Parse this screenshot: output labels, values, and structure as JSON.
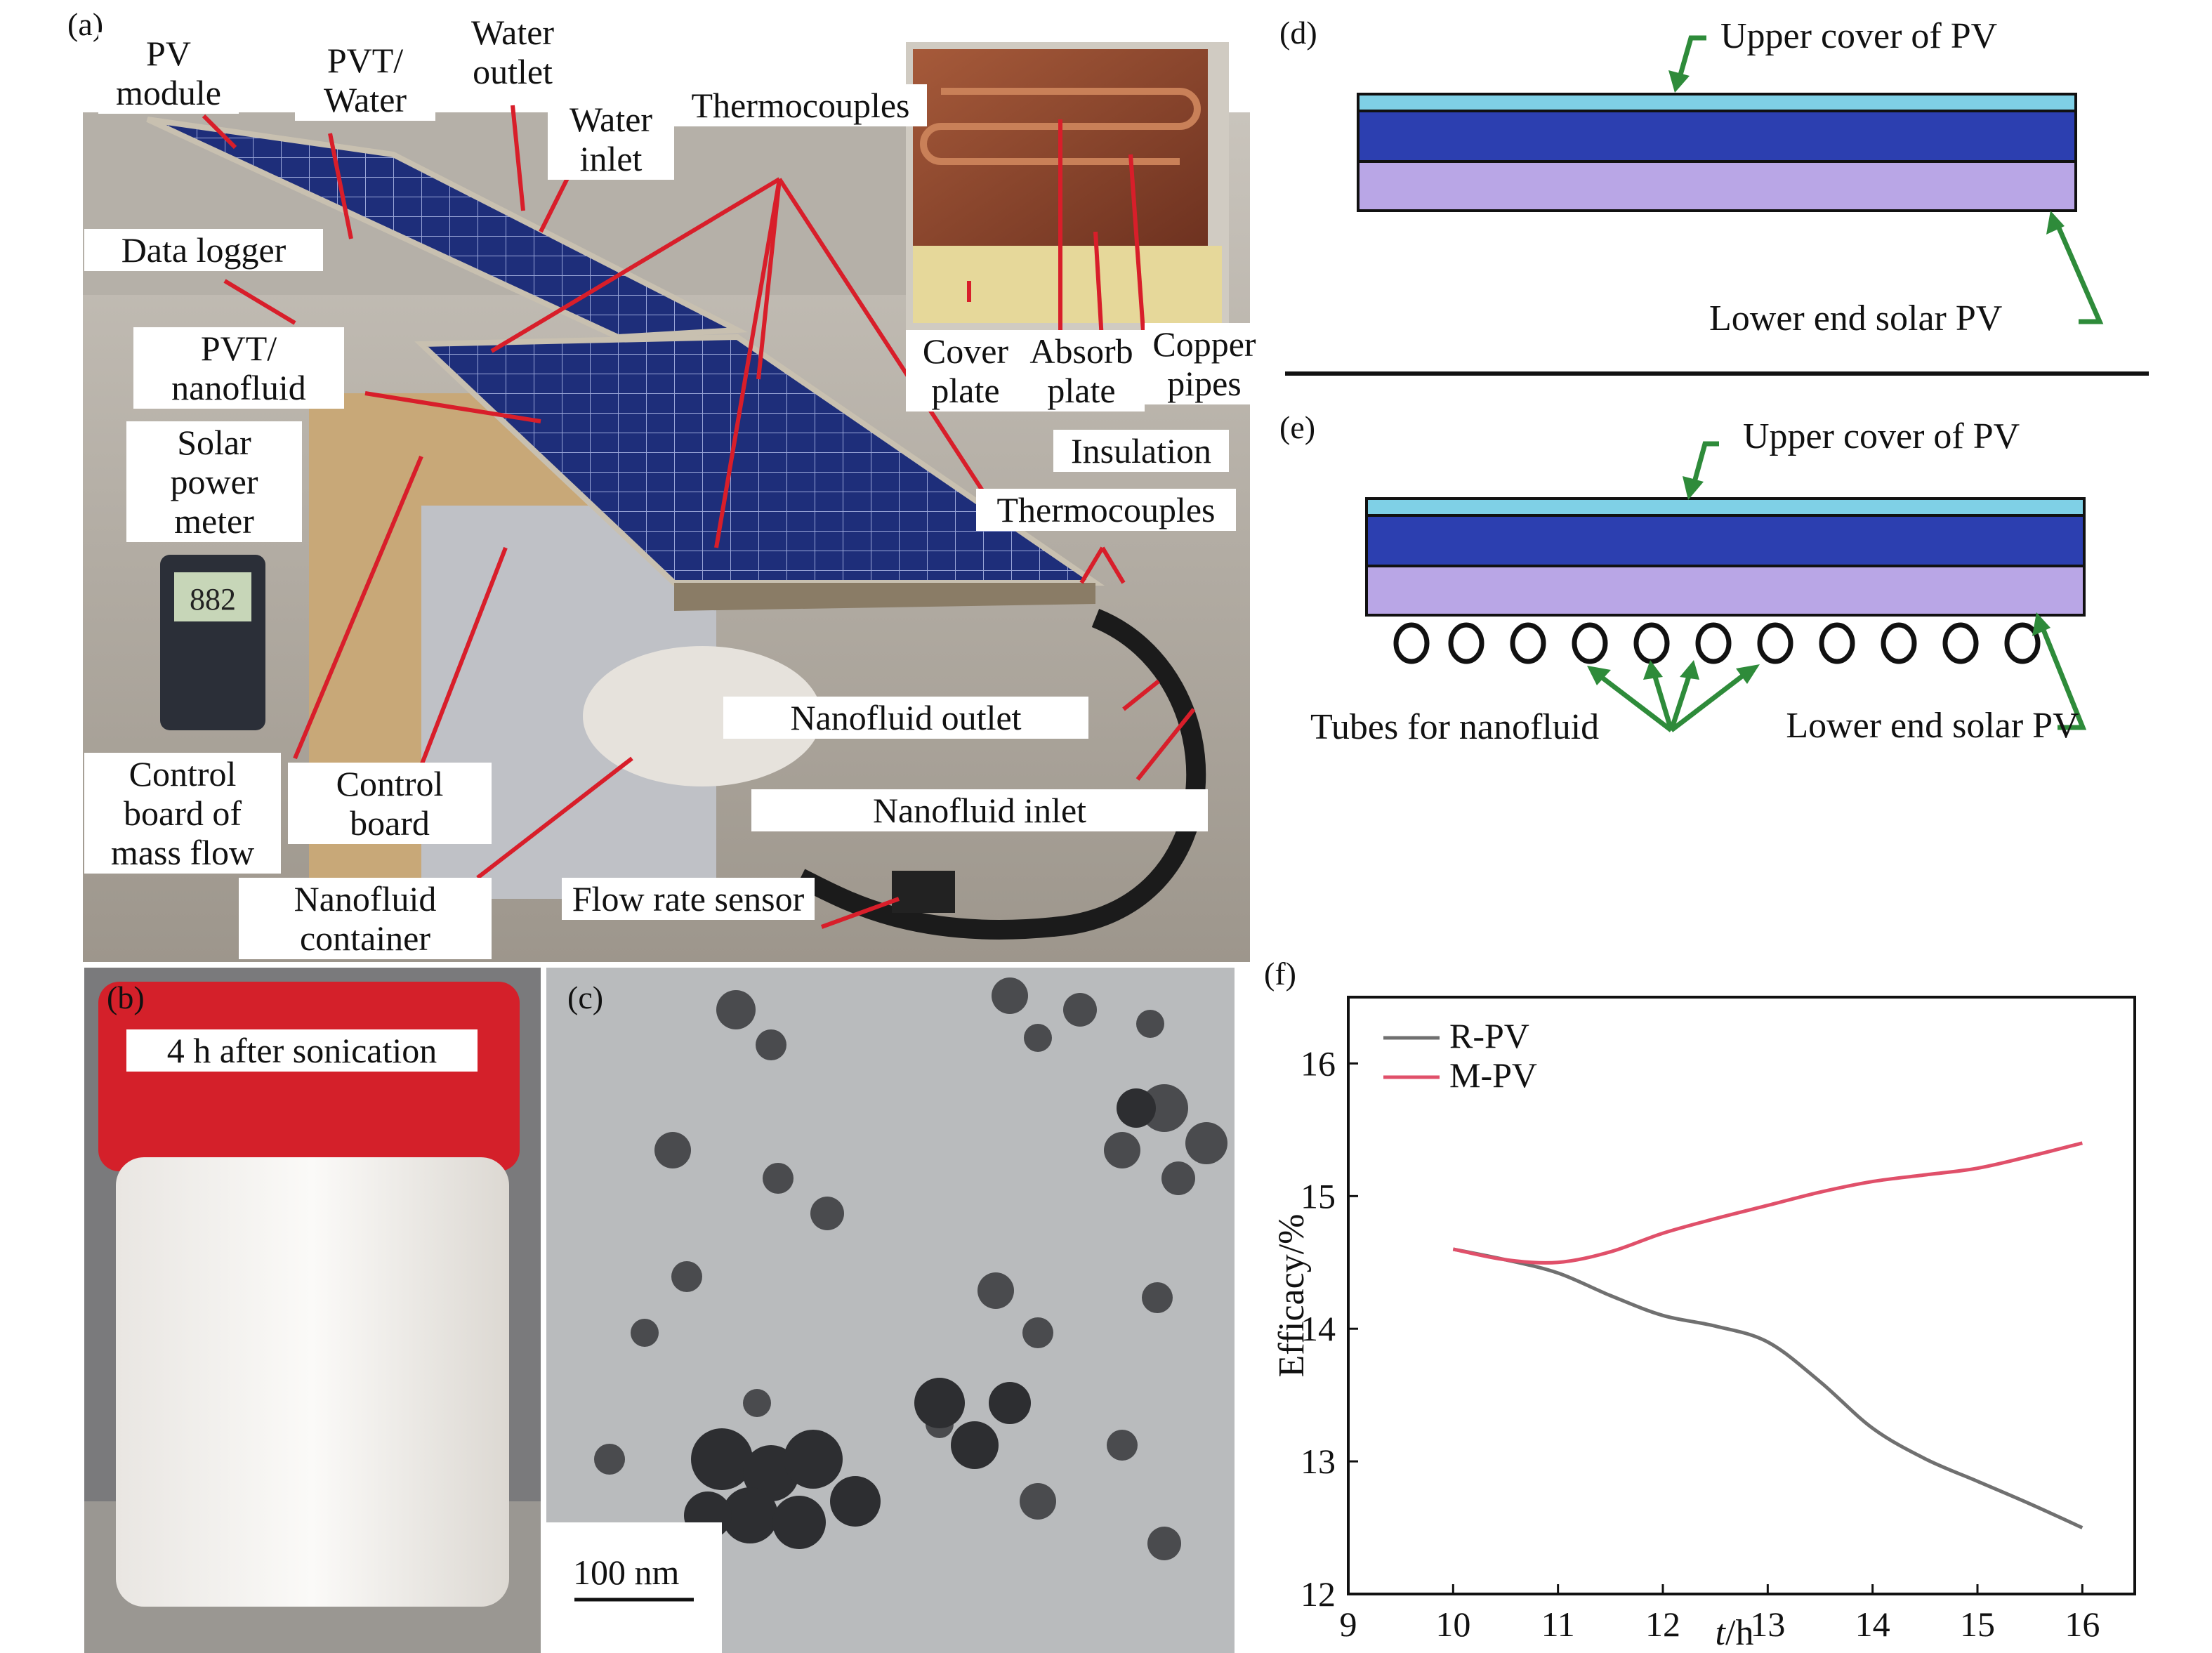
{
  "panels": {
    "a": {
      "label": "(a)",
      "callouts": {
        "pv_module": "PV module",
        "pvt_water": "PVT/ Water",
        "water_outlet": "Water outlet",
        "water_inlet": "Water inlet",
        "thermocouples_top": "Thermocouples",
        "data_logger": "Data logger",
        "pvt_nanofluid": "PVT/ nanofluid",
        "solar_power_meter": "Solar power meter",
        "meter_reading": "882",
        "cover_plate": "Cover plate",
        "absorb_plate": "Absorb plate",
        "copper_pipes": "Copper pipes",
        "insulation": "Insulation",
        "thermocouples_bottom": "Thermocouples",
        "nanofluid_outlet": "Nanofluid outlet",
        "nanofluid_inlet": "Nanofluid inlet",
        "control_board_mass_flow": "Control board of mass flow",
        "control_board": "Control board",
        "nanofluid_container": "Nanofluid container",
        "flow_rate_sensor": "Flow rate sensor"
      }
    },
    "b": {
      "label": "(b)",
      "caption": "4 h after sonication"
    },
    "c": {
      "label": "(c)",
      "scale_bar": "100 nm"
    },
    "d": {
      "label": "(d)",
      "upper": "Upper cover of PV",
      "lower": "Lower end solar PV"
    },
    "e": {
      "label": "(e)",
      "upper": "Upper cover of PV",
      "tubes": "Tubes for nanofluid",
      "lower": "Lower end solar PV"
    }
  },
  "colors": {
    "arrow_red": "#d81e2a",
    "arrow_green": "#2e8b3a",
    "cover_cyan": "#7fd0e6",
    "cell_blue": "#2c3fb0",
    "back_lavender": "#b9a6e6",
    "rpv_line": "#707070",
    "mpv_line": "#e0506a"
  },
  "chart_data": {
    "panel_label": "(f)",
    "type": "line",
    "xlabel_var": "t",
    "xlabel_unit": "/h",
    "ylabel": "Efficacy/%",
    "xlim": [
      9,
      16.5
    ],
    "ylim": [
      12,
      16.5
    ],
    "xticks": [
      "9",
      "10",
      "11",
      "12",
      "13",
      "14",
      "15",
      "16"
    ],
    "yticks": [
      "12",
      "13",
      "14",
      "15",
      "16"
    ],
    "legend_position": "top-left",
    "series": [
      {
        "name": "R-PV",
        "color": "#707070",
        "x": [
          10,
          10.5,
          11,
          11.5,
          12,
          12.5,
          13,
          13.5,
          14,
          14.5,
          15,
          15.5,
          16
        ],
        "y": [
          14.6,
          14.52,
          14.42,
          14.25,
          14.1,
          14.02,
          13.9,
          13.6,
          13.25,
          13.02,
          12.85,
          12.68,
          12.5
        ]
      },
      {
        "name": "M-PV",
        "color": "#e0506a",
        "x": [
          10,
          10.5,
          11,
          11.5,
          12,
          12.5,
          13,
          13.5,
          14,
          14.5,
          15,
          15.5,
          16
        ],
        "y": [
          14.6,
          14.52,
          14.5,
          14.58,
          14.72,
          14.83,
          14.93,
          15.03,
          15.11,
          15.16,
          15.21,
          15.3,
          15.4
        ]
      }
    ]
  }
}
